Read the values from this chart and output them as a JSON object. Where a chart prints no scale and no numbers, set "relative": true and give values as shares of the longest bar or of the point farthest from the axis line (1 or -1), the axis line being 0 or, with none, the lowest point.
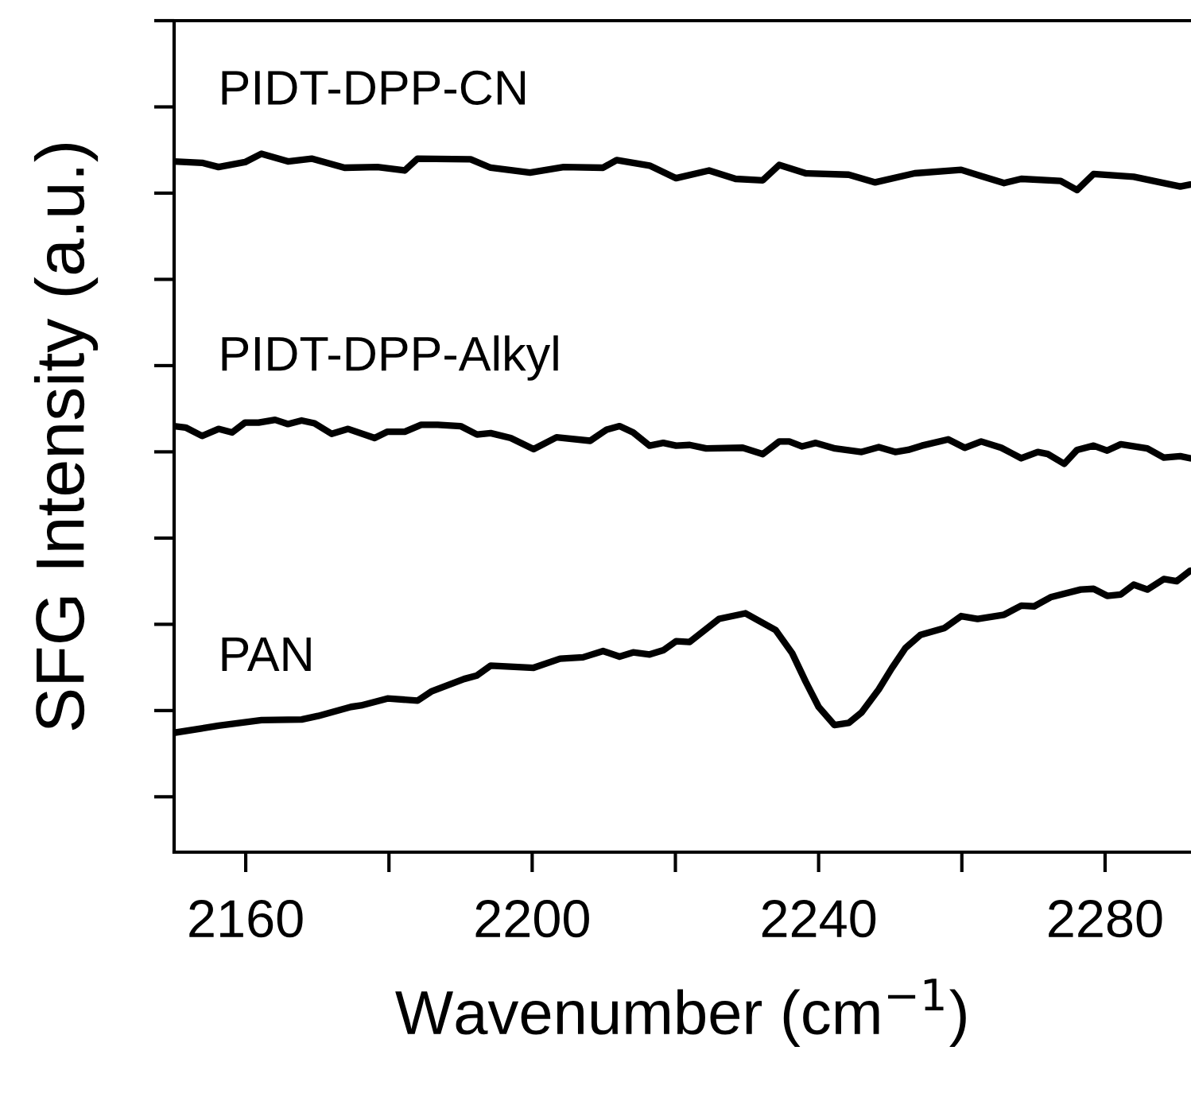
{
  "chart_data": {
    "type": "line",
    "relative": true,
    "xlabel": "Wavenumber (cm$^{−1}$)",
    "ylabel": "SFG Intensity (a.u.)",
    "xlim": [
      2150,
      2292
    ],
    "xticks": [
      2160,
      {
        "value": 2180,
        "label": null
      },
      2200,
      {
        "value": 2220,
        "label": null
      },
      2240,
      {
        "value": 2260,
        "label": null
      },
      2280
    ],
    "grid": false,
    "legend": "left",
    "marker": "none",
    "line_style": "solid",
    "series": [
      {
        "name": "PIDT-DPP-CN",
        "color": "#000000",
        "x": [
          2150,
          2153.9,
          2156.2,
          2159.9,
          2162.2,
          2165.9,
          2169.2,
          2173.8,
          2178.4,
          2182.2,
          2184.0,
          2191.4,
          2194.2,
          2199.7,
          2204.4,
          2209.9,
          2211.8,
          2216.4,
          2220.1,
          2224.7,
          2228.4,
          2232.2,
          2234.5,
          2238.2,
          2244.2,
          2247.9,
          2253.4,
          2259.9,
          2262.7,
          2265.9,
          2268.3,
          2273.8,
          2276.1,
          2278.4,
          2284.0,
          2287.7,
          2290.5,
          2291.9
        ],
        "values": [
          0.989,
          0.987,
          0.981,
          0.988,
          1,
          0.989,
          0.993,
          0.98,
          0.981,
          0.976,
          0.993,
          0.992,
          0.98,
          0.973,
          0.981,
          0.98,
          0.991,
          0.983,
          0.965,
          0.976,
          0.964,
          0.962,
          0.984,
          0.972,
          0.97,
          0.959,
          0.972,
          0.977,
          0.968,
          0.958,
          0.964,
          0.961,
          0.948,
          0.971,
          0.967,
          0.959,
          0.953,
          0.956
        ]
      },
      {
        "name": "PIDT-DPP-Alkyl",
        "color": "#000000",
        "x": [
          2150,
          2151.6,
          2153.9,
          2156.2,
          2158.1,
          2159.9,
          2161.8,
          2164.1,
          2165.9,
          2167.8,
          2169.6,
          2172.0,
          2174.3,
          2178.0,
          2179.8,
          2182.2,
          2184.5,
          2186.8,
          2190.0,
          2192.3,
          2194.2,
          2197.0,
          2200.2,
          2203.4,
          2208.1,
          2210.4,
          2212.2,
          2214.1,
          2216.4,
          2218.3,
          2220.1,
          2222.0,
          2224.3,
          2229.4,
          2232.2,
          2234.5,
          2235.9,
          2237.7,
          2239.6,
          2242.3,
          2246.0,
          2248.4,
          2250.7,
          2252.5,
          2254.4,
          2258.1,
          2260.4,
          2262.7,
          2265.5,
          2268.3,
          2270.6,
          2272.0,
          2274.3,
          2276.1,
          2278.4,
          2280.3,
          2282.2,
          2285.9,
          2288.2,
          2290.5,
          2291.9
        ],
        "values": [
          0.61,
          0.608,
          0.596,
          0.606,
          0.601,
          0.615,
          0.615,
          0.619,
          0.613,
          0.618,
          0.614,
          0.599,
          0.606,
          0.593,
          0.602,
          0.602,
          0.612,
          0.612,
          0.61,
          0.598,
          0.6,
          0.593,
          0.577,
          0.594,
          0.589,
          0.605,
          0.61,
          0.601,
          0.582,
          0.586,
          0.582,
          0.583,
          0.578,
          0.579,
          0.57,
          0.588,
          0.588,
          0.581,
          0.586,
          0.578,
          0.573,
          0.58,
          0.573,
          0.576,
          0.582,
          0.591,
          0.579,
          0.588,
          0.579,
          0.564,
          0.573,
          0.57,
          0.556,
          0.576,
          0.582,
          0.575,
          0.584,
          0.578,
          0.565,
          0.567,
          0.564
        ]
      },
      {
        "name": "PAN",
        "color": "#000000",
        "x": [
          2150,
          2156.2,
          2162.2,
          2167.8,
          2170.1,
          2174.7,
          2176.1,
          2179.8,
          2184.0,
          2185.9,
          2190.5,
          2192.3,
          2194.2,
          2200.2,
          2203.9,
          2207.1,
          2209.9,
          2212.2,
          2214.1,
          2216.4,
          2218.3,
          2220.1,
          2222.0,
          2226.1,
          2229.8,
          2234.0,
          2236.3,
          2238.2,
          2240.0,
          2242.2,
          2244.2,
          2246.0,
          2248.4,
          2250.2,
          2252.1,
          2254.2,
          2257.6,
          2259.9,
          2262.2,
          2265.9,
          2268.3,
          2270.1,
          2272.4,
          2276.6,
          2278.4,
          2280.3,
          2282.2,
          2284.0,
          2285.9,
          2288.2,
          2290.0,
          2291.9
        ],
        "values": [
          0.171,
          0.181,
          0.189,
          0.19,
          0.195,
          0.208,
          0.21,
          0.22,
          0.217,
          0.23,
          0.248,
          0.253,
          0.267,
          0.264,
          0.277,
          0.279,
          0.288,
          0.28,
          0.286,
          0.283,
          0.289,
          0.302,
          0.301,
          0.334,
          0.342,
          0.318,
          0.285,
          0.244,
          0.208,
          0.182,
          0.185,
          0.2,
          0.233,
          0.263,
          0.292,
          0.311,
          0.321,
          0.338,
          0.334,
          0.34,
          0.353,
          0.352,
          0.365,
          0.376,
          0.377,
          0.367,
          0.369,
          0.383,
          0.376,
          0.391,
          0.388,
          0.403
        ]
      }
    ]
  }
}
